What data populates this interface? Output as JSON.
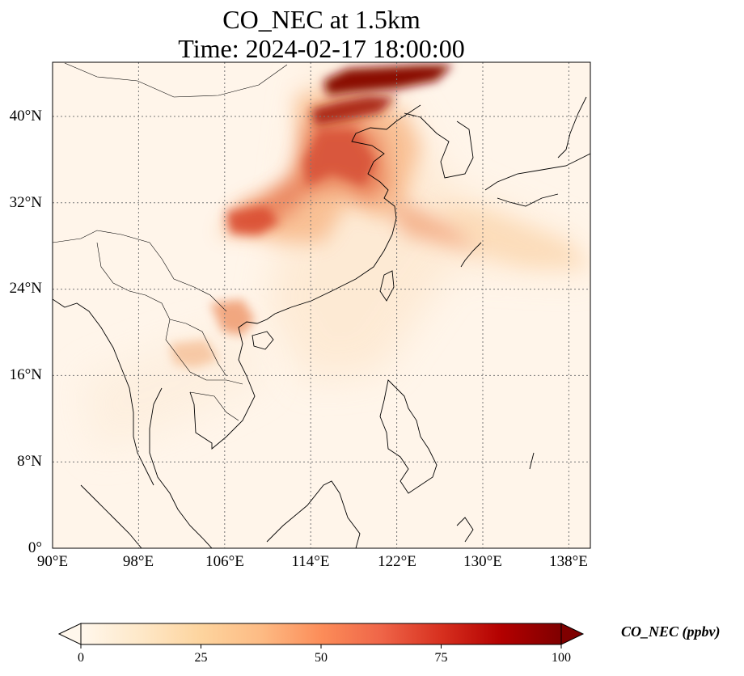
{
  "map": {
    "title_line1": "CO_NEC at 1.5km",
    "title_line2": "Time: 2024-02-17 18:00:00",
    "lat_ticks": [
      "0°",
      "8°N",
      "16°N",
      "24°N",
      "32°N",
      "40°N"
    ],
    "lon_ticks": [
      "90°E",
      "98°E",
      "106°E",
      "114°E",
      "122°E",
      "130°E",
      "138°E"
    ],
    "extent": {
      "lon_min": 90,
      "lon_max": 140,
      "lat_min": 0,
      "lat_max": 45
    },
    "gridlines": true,
    "gridline_style": "dotted",
    "colormap": "OrRd"
  },
  "colorbar": {
    "label": "CO_NEC (ppbv)",
    "ticks": [
      "0",
      "25",
      "50",
      "75",
      "100"
    ],
    "min": 0,
    "max": 100,
    "extend": "both",
    "colors": [
      "#fff7ec",
      "#fee8c8",
      "#fdd49e",
      "#fdbb84",
      "#fc8d59",
      "#ef6548",
      "#d7301f",
      "#b30000",
      "#7f0000"
    ]
  },
  "chart_data": {
    "type": "heatmap",
    "variable": "CO_NEC",
    "units": "ppbv",
    "xlabel": "",
    "ylabel": "",
    "xlim": [
      90,
      140
    ],
    "ylim": [
      0,
      45
    ],
    "value_range": [
      0,
      100
    ],
    "plumes": [
      {
        "lon": 117,
        "lat": 44,
        "value": 100
      },
      {
        "lon": 116,
        "lat": 40,
        "value": 90
      },
      {
        "lon": 115,
        "lat": 36,
        "value": 70
      },
      {
        "lon": 119,
        "lat": 33,
        "value": 60
      },
      {
        "lon": 109,
        "lat": 31,
        "value": 55
      },
      {
        "lon": 124,
        "lat": 32,
        "value": 35
      },
      {
        "lon": 107,
        "lat": 21.5,
        "value": 45
      },
      {
        "lon": 103,
        "lat": 18.5,
        "value": 30
      },
      {
        "lon": 132,
        "lat": 27,
        "value": 20
      }
    ]
  }
}
